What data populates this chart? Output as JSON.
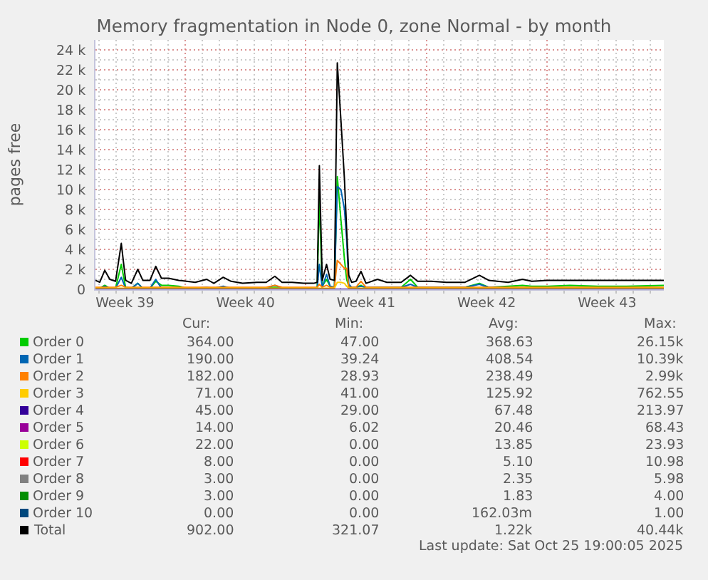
{
  "chart_data": {
    "type": "line",
    "title": "Memory fragmentation in Node 0, zone Normal - by month",
    "ylabel": "pages free",
    "x": [
      "2025-09-22T19:00",
      "2025-09-23T01:00",
      "2025-09-23T08:00",
      "2025-09-23T15:00",
      "2025-09-23T23:00",
      "2025-09-24T07:00",
      "2025-09-24T13:00",
      "2025-09-24T21:00",
      "2025-09-25T06:00",
      "2025-09-25T13:00",
      "2025-09-25T23:00",
      "2025-09-26T07:00",
      "2025-09-26T15:00",
      "2025-09-27T01:00",
      "2025-09-27T15:00",
      "2025-09-28T02:00",
      "2025-09-28T14:00",
      "2025-09-29T06:00",
      "2025-09-29T16:00",
      "2025-09-30T05:00",
      "2025-09-30T16:00",
      "2025-10-01T08:00",
      "2025-10-02T04:00",
      "2025-10-02T17:00",
      "2025-10-03T05:00",
      "2025-10-03T15:00",
      "2025-10-04T05:00",
      "2025-10-04T21:00",
      "2025-10-05T11:00",
      "2025-10-05T16:00",
      "2025-10-05T19:00",
      "2025-10-05T23:00",
      "2025-10-06T05:00",
      "2025-10-06T10:00",
      "2025-10-06T16:00",
      "2025-10-06T20:00",
      "2025-10-07T01:00",
      "2025-10-07T06:00",
      "2025-10-07T09:00",
      "2025-10-07T12:00",
      "2025-10-07T16:00",
      "2025-10-07T22:00",
      "2025-10-08T05:00",
      "2025-10-08T12:00",
      "2025-10-09T04:00",
      "2025-10-09T17:00",
      "2025-10-10T13:00",
      "2025-10-11T02:00",
      "2025-10-11T12:00",
      "2025-10-12T07:00",
      "2025-10-13T04:00",
      "2025-10-14T06:00",
      "2025-10-15T02:00",
      "2025-10-15T15:00",
      "2025-10-16T18:00",
      "2025-10-17T14:00",
      "2025-10-18T03:00",
      "2025-10-19T02:00",
      "2025-10-20T08:00",
      "2025-10-21T23:00",
      "2025-10-23T15:00",
      "2025-10-25T19:00"
    ],
    "series": [
      {
        "name": "Order 0",
        "color": "#00cc00",
        "values": [
          100,
          100,
          400,
          100,
          100,
          2500,
          200,
          100,
          600,
          100,
          100,
          800,
          400,
          400,
          300,
          100,
          100,
          100,
          100,
          200,
          100,
          100,
          100,
          100,
          200,
          100,
          100,
          100,
          100,
          100,
          9000,
          300,
          1000,
          300,
          200,
          11300,
          7000,
          3000,
          1000,
          300,
          100,
          200,
          400,
          100,
          200,
          200,
          200,
          1000,
          200,
          200,
          200,
          200,
          600,
          200,
          300,
          400,
          300,
          300,
          400,
          300,
          300,
          400
        ]
      },
      {
        "name": "Order 1",
        "color": "#0066b3",
        "values": [
          100,
          100,
          300,
          100,
          100,
          1200,
          100,
          100,
          600,
          100,
          100,
          1000,
          100,
          100,
          100,
          100,
          100,
          200,
          100,
          300,
          100,
          100,
          100,
          100,
          400,
          100,
          100,
          100,
          100,
          100,
          2500,
          200,
          1500,
          300,
          200,
          10300,
          10000,
          8000,
          5000,
          500,
          200,
          200,
          300,
          200,
          200,
          200,
          200,
          500,
          200,
          200,
          200,
          200,
          500,
          200,
          200,
          null,
          null,
          null,
          null,
          null,
          null,
          null
        ]
      },
      {
        "name": "Order 2",
        "color": "#ff8000",
        "values": [
          200,
          200,
          200,
          200,
          200,
          400,
          200,
          200,
          200,
          200,
          200,
          200,
          200,
          200,
          200,
          200,
          200,
          200,
          200,
          200,
          200,
          200,
          200,
          200,
          400,
          200,
          200,
          200,
          200,
          200,
          500,
          200,
          400,
          200,
          200,
          2900,
          2500,
          2100,
          2100,
          200,
          200,
          200,
          800,
          200,
          200,
          200,
          200,
          200,
          200,
          200,
          200,
          200,
          200,
          200,
          200,
          200,
          200,
          200,
          200,
          200,
          200,
          200
        ]
      },
      {
        "name": "Order 3",
        "color": "#ffcc00",
        "values": [
          100,
          100,
          100,
          100,
          100,
          100,
          100,
          100,
          100,
          100,
          100,
          100,
          100,
          100,
          100,
          100,
          100,
          100,
          100,
          100,
          100,
          100,
          100,
          100,
          100,
          100,
          100,
          100,
          100,
          100,
          100,
          100,
          100,
          100,
          100,
          700,
          700,
          600,
          300,
          100,
          100,
          100,
          100,
          100,
          100,
          100,
          100,
          100,
          100,
          100,
          100,
          100,
          100,
          100,
          100,
          100,
          100,
          100,
          100,
          100,
          100,
          100
        ]
      },
      {
        "name": "Order 4",
        "color": "#330099",
        "x": [
          "2025-09-22T19:00",
          "2025-10-25T19:00"
        ],
        "values": [
          0,
          0
        ]
      },
      {
        "name": "Order 5",
        "color": "#990099",
        "values": [
          null,
          null,
          null,
          null,
          null,
          null,
          null,
          null,
          null,
          null,
          null,
          null,
          null,
          null,
          null,
          null,
          null,
          null,
          null,
          null,
          null,
          null,
          null,
          null,
          null,
          null,
          null,
          null,
          null,
          null,
          null,
          null,
          null,
          null,
          null,
          null,
          null,
          null,
          null,
          null,
          null,
          null,
          null,
          null,
          null,
          null,
          null,
          null,
          null,
          null,
          null,
          null,
          null,
          null,
          null,
          null,
          null,
          null,
          null,
          null,
          null,
          null
        ]
      },
      {
        "name": "Order 6",
        "color": "#ccff00",
        "values": [
          null,
          null,
          null,
          null,
          null,
          null,
          null,
          null,
          null,
          null,
          null,
          null,
          null,
          null,
          null,
          null,
          null,
          null,
          null,
          null,
          null,
          null,
          null,
          null,
          null,
          null,
          null,
          null,
          null,
          null,
          null,
          null,
          null,
          null,
          null,
          null,
          null,
          null,
          null,
          null,
          null,
          null,
          null,
          null,
          null,
          null,
          null,
          null,
          null,
          null,
          null,
          null,
          null,
          null,
          null,
          null,
          null,
          null,
          null,
          null,
          null,
          null
        ]
      },
      {
        "name": "Order 7",
        "color": "#ff0000",
        "values": [
          null,
          null,
          null,
          null,
          null,
          null,
          null,
          null,
          null,
          null,
          null,
          null,
          null,
          null,
          null,
          null,
          null,
          null,
          null,
          null,
          null,
          null,
          null,
          null,
          null,
          null,
          null,
          null,
          null,
          null,
          null,
          null,
          null,
          null,
          null,
          null,
          null,
          null,
          null,
          null,
          null,
          null,
          null,
          null,
          null,
          null,
          null,
          null,
          null,
          null,
          null,
          null,
          null,
          null,
          null,
          null,
          null,
          null,
          null,
          null,
          null,
          null
        ]
      },
      {
        "name": "Order 8",
        "color": "#808080",
        "values": [
          null,
          null,
          null,
          null,
          null,
          null,
          null,
          null,
          null,
          null,
          null,
          null,
          null,
          null,
          null,
          null,
          null,
          null,
          null,
          null,
          null,
          null,
          null,
          null,
          null,
          null,
          null,
          null,
          null,
          null,
          null,
          null,
          null,
          null,
          null,
          null,
          null,
          null,
          null,
          null,
          null,
          null,
          null,
          null,
          null,
          null,
          null,
          null,
          null,
          null,
          null,
          null,
          null,
          null,
          null,
          null,
          null,
          null,
          null,
          null,
          null,
          null
        ]
      },
      {
        "name": "Order 9",
        "color": "#008f00",
        "values": [
          null,
          null,
          null,
          null,
          null,
          null,
          null,
          null,
          null,
          null,
          null,
          null,
          null,
          null,
          null,
          null,
          null,
          null,
          null,
          null,
          null,
          null,
          null,
          null,
          null,
          null,
          null,
          null,
          null,
          null,
          null,
          null,
          null,
          null,
          null,
          null,
          null,
          null,
          null,
          null,
          null,
          null,
          null,
          null,
          null,
          null,
          null,
          null,
          null,
          null,
          null,
          null,
          null,
          null,
          null,
          null,
          null,
          null,
          null,
          null,
          null,
          null
        ]
      },
      {
        "name": "Order 10",
        "color": "#00487d",
        "values": [
          null,
          null,
          null,
          null,
          null,
          null,
          null,
          null,
          null,
          null,
          null,
          null,
          null,
          null,
          null,
          null,
          null,
          null,
          null,
          null,
          null,
          null,
          null,
          null,
          null,
          null,
          null,
          null,
          null,
          null,
          null,
          null,
          null,
          null,
          null,
          null,
          null,
          null,
          null,
          null,
          null,
          null,
          null,
          null,
          null,
          null,
          null,
          null,
          null,
          null,
          null,
          null,
          null,
          null,
          null,
          null,
          null,
          null,
          null,
          null,
          null,
          null
        ]
      },
      {
        "name": "Total",
        "color": "#000000",
        "values": [
          900,
          700,
          1900,
          1000,
          800,
          4600,
          900,
          600,
          2000,
          900,
          900,
          2300,
          1100,
          1100,
          900,
          800,
          700,
          1000,
          600,
          1200,
          800,
          600,
          700,
          700,
          1300,
          700,
          700,
          600,
          600,
          700,
          12400,
          900,
          2500,
          1000,
          900,
          22700,
          17000,
          11000,
          6000,
          1400,
          700,
          800,
          1800,
          600,
          1000,
          700,
          700,
          1400,
          800,
          800,
          700,
          700,
          1400,
          900,
          700,
          1000,
          800,
          900,
          900,
          900,
          900,
          900
        ]
      }
    ],
    "xlim": [
      "2025-09-22T19:00",
      "2025-10-25T19:00"
    ],
    "xticks": [
      {
        "value": "2025-09-24T12:00",
        "label": "Week 39"
      },
      {
        "value": "2025-09-28",
        "label": null
      },
      {
        "value": "2025-10-01T12:00",
        "label": "Week 40"
      },
      {
        "value": "2025-10-05",
        "label": null
      },
      {
        "value": "2025-10-08T12:00",
        "label": "Week 41"
      },
      {
        "value": "2025-10-12",
        "label": null
      },
      {
        "value": "2025-10-15T12:00",
        "label": "Week 42"
      },
      {
        "value": "2025-10-19",
        "label": null
      },
      {
        "value": "2025-10-22T12:00",
        "label": "Week 43"
      }
    ],
    "ylim": [
      0,
      25000
    ],
    "yticks": [
      0,
      {
        "value": 2000,
        "label": "2 k"
      },
      {
        "value": 4000,
        "label": "4 k"
      },
      {
        "value": 6000,
        "label": "6 k"
      },
      {
        "value": 8000,
        "label": "8 k"
      },
      {
        "value": 10000,
        "label": "10 k"
      },
      {
        "value": 12000,
        "label": "12 k"
      },
      {
        "value": 14000,
        "label": "14 k"
      },
      {
        "value": 16000,
        "label": "16 k"
      },
      {
        "value": 18000,
        "label": "18 k"
      },
      {
        "value": 20000,
        "label": "20 k"
      },
      {
        "value": 22000,
        "label": "22 k"
      },
      {
        "value": 24000,
        "label": "24 k"
      }
    ],
    "grid": true,
    "legend": "bottom",
    "annotations": [
      "Cur:",
      "Min:",
      "Avg:",
      "Max:",
      "364.00",
      "47.00",
      "368.63",
      "26.15k",
      "190.00",
      "39.24",
      "408.54",
      "10.39k",
      "182.00",
      "28.93",
      "238.49",
      "2.99k",
      "71.00",
      "41.00",
      "125.92",
      "762.55",
      "45.00",
      "29.00",
      "67.48",
      "213.97",
      "14.00",
      "6.02",
      "20.46",
      "68.43",
      "22.00",
      "0.00",
      "13.85",
      "23.93",
      "8.00",
      "0.00",
      "5.10",
      "10.98",
      "3.00",
      "0.00",
      "2.35",
      "5.98",
      "3.00",
      "0.00",
      "1.83",
      "4.00",
      "0.00",
      "0.00",
      "162.03m",
      "1.00",
      "902.00",
      "321.07",
      "1.22k",
      "40.44k",
      "Last update: Sat Oct 25 19:00:05 2025"
    ]
  }
}
